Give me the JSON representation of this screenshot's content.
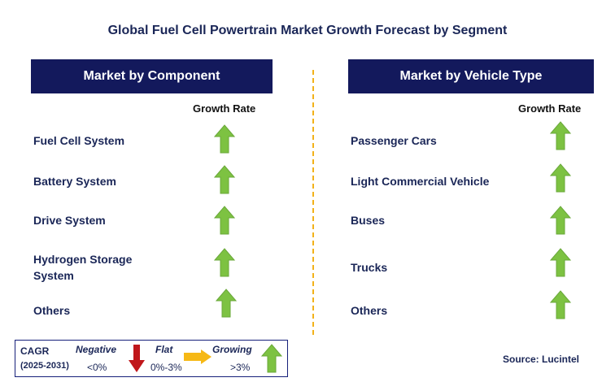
{
  "title": "Global Fuel Cell Powertrain Market Growth Forecast by Segment",
  "left_panel": {
    "header": "Market by Component",
    "growth_label": "Growth Rate",
    "rows": [
      {
        "label": "Fuel Cell System",
        "trend": "growing"
      },
      {
        "label": "Battery System",
        "trend": "growing"
      },
      {
        "label": "Drive System",
        "trend": "growing"
      },
      {
        "label": "Hydrogen Storage System",
        "label_line1": "Hydrogen Storage",
        "label_line2": "System",
        "trend": "growing"
      },
      {
        "label": "Others",
        "trend": "growing"
      }
    ]
  },
  "right_panel": {
    "header": "Market by Vehicle Type",
    "growth_label": "Growth Rate",
    "rows": [
      {
        "label": "Passenger Cars",
        "trend": "growing"
      },
      {
        "label": "Light Commercial Vehicle",
        "trend": "growing"
      },
      {
        "label": "Buses",
        "trend": "growing"
      },
      {
        "label": "Trucks",
        "trend": "growing"
      },
      {
        "label": "Others",
        "trend": "growing"
      }
    ]
  },
  "legend": {
    "cagr_label": "CAGR",
    "period": "(2025-2031)",
    "negative": {
      "label": "Negative",
      "range": "<0%",
      "icon": "red-down-arrow-icon"
    },
    "flat": {
      "label": "Flat",
      "range": "0%-3%",
      "icon": "orange-right-arrow-icon"
    },
    "growing": {
      "label": "Growing",
      "range": ">3%",
      "icon": "green-up-arrow-icon"
    }
  },
  "source": "Source: Lucintel",
  "colors": {
    "header_bg": "#13195c",
    "title_text": "#1a2657",
    "growing": "#7dc242",
    "negative": "#c0171b",
    "flat": "#f6b815",
    "divider": "#f2b21a"
  }
}
